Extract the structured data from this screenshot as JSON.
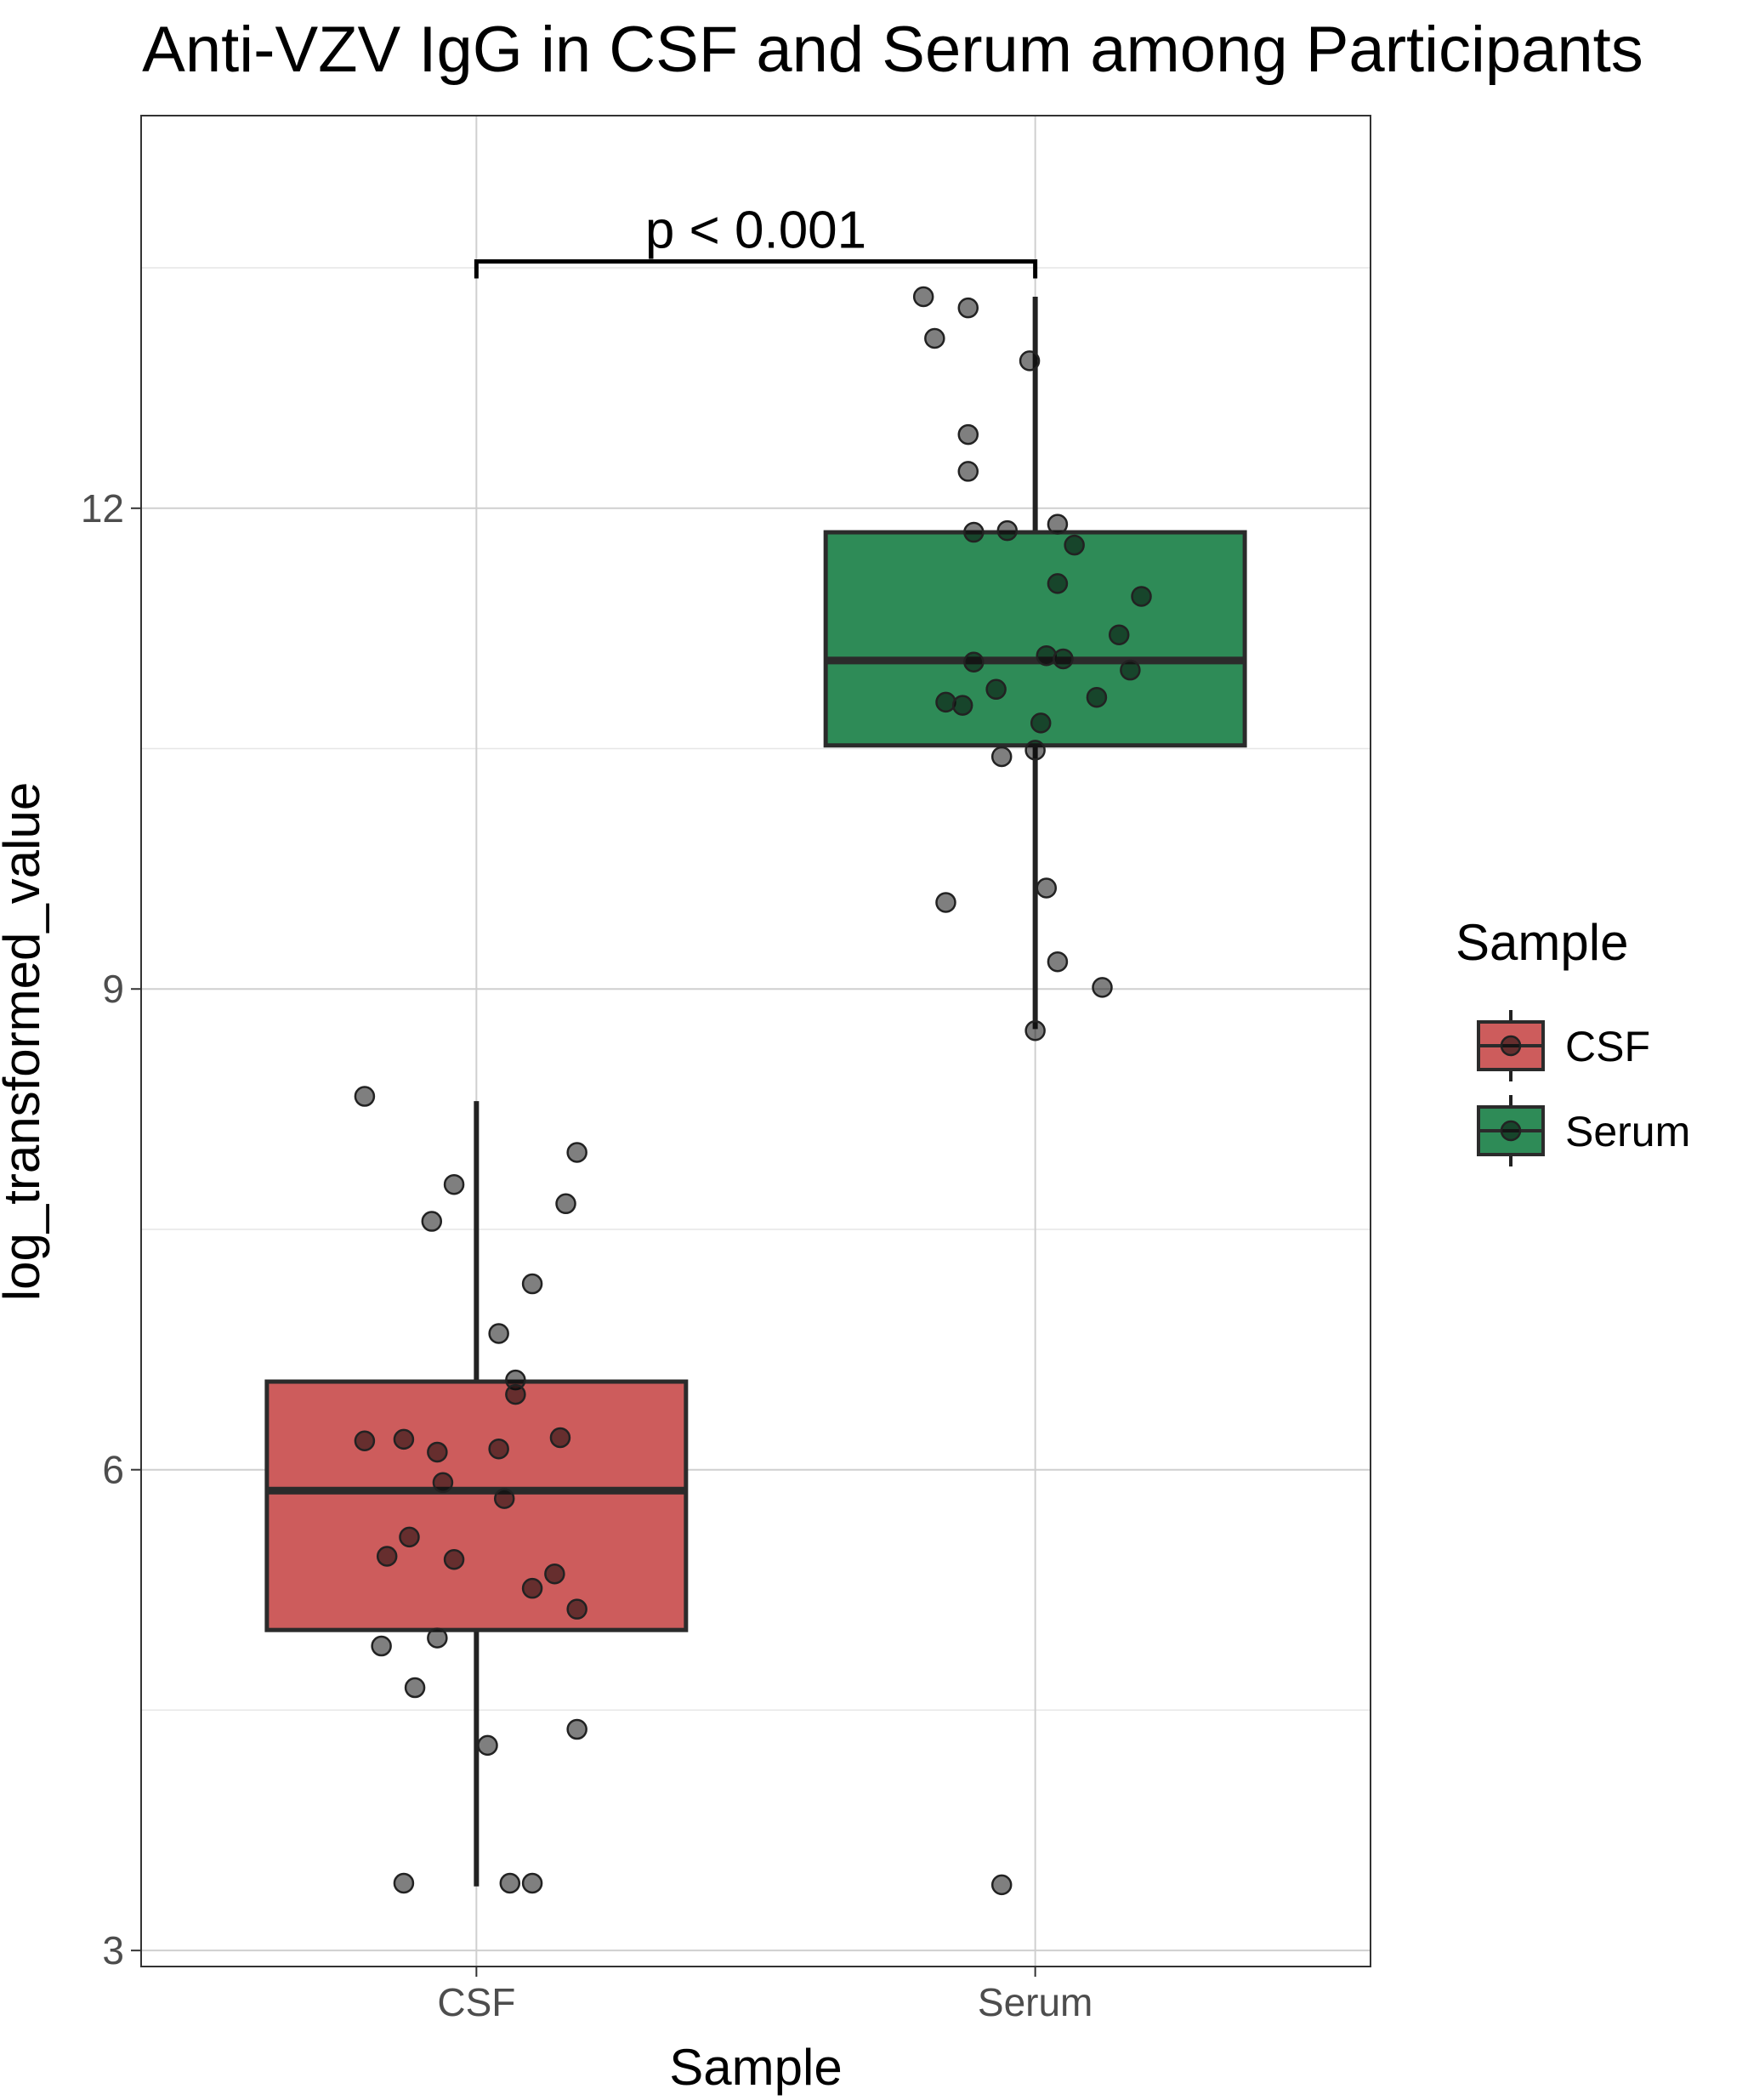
{
  "chart_data": {
    "type": "boxplot",
    "title": "Anti-VZV IgG in CSF and Serum among Participants",
    "xlabel": "Sample",
    "ylabel": "log_transformed_value",
    "ylim": [
      2.9,
      14.45
    ],
    "yticks": [
      3,
      6,
      9,
      12
    ],
    "ytick_labels": [
      "3",
      "6",
      "9",
      "12"
    ],
    "grid": true,
    "legend": {
      "title": "Sample",
      "position": "right",
      "entries": [
        {
          "label": "CSF",
          "color": "#cd5c5c"
        },
        {
          "label": "Serum",
          "color": "#2e8b57"
        }
      ]
    },
    "annotation": {
      "text": "p < 0.001",
      "between": [
        "CSF",
        "Serum"
      ],
      "y": 13.54
    },
    "categories": [
      "CSF",
      "Serum"
    ],
    "groups": [
      {
        "name": "CSF",
        "color": "#cd5c5c",
        "whisker_low": 3.4,
        "q1": 5.0,
        "median": 5.87,
        "q3": 6.55,
        "whisker_high": 8.3,
        "points": [
          {
            "jitter": -0.2,
            "y": 8.33
          },
          {
            "jitter": 0.18,
            "y": 7.98
          },
          {
            "jitter": -0.04,
            "y": 7.78
          },
          {
            "jitter": 0.16,
            "y": 7.66
          },
          {
            "jitter": -0.08,
            "y": 7.55
          },
          {
            "jitter": 0.1,
            "y": 7.16
          },
          {
            "jitter": 0.04,
            "y": 6.85
          },
          {
            "jitter": 0.07,
            "y": 6.56
          },
          {
            "jitter": 0.07,
            "y": 6.47
          },
          {
            "jitter": -0.2,
            "y": 6.18
          },
          {
            "jitter": -0.13,
            "y": 6.19
          },
          {
            "jitter": 0.15,
            "y": 6.2
          },
          {
            "jitter": 0.04,
            "y": 6.13
          },
          {
            "jitter": -0.07,
            "y": 6.11
          },
          {
            "jitter": -0.06,
            "y": 5.92
          },
          {
            "jitter": 0.05,
            "y": 5.82
          },
          {
            "jitter": -0.12,
            "y": 5.58
          },
          {
            "jitter": -0.16,
            "y": 5.46
          },
          {
            "jitter": -0.04,
            "y": 5.44
          },
          {
            "jitter": 0.14,
            "y": 5.35
          },
          {
            "jitter": 0.1,
            "y": 5.26
          },
          {
            "jitter": 0.18,
            "y": 5.13
          },
          {
            "jitter": -0.17,
            "y": 4.9
          },
          {
            "jitter": -0.07,
            "y": 4.95
          },
          {
            "jitter": -0.11,
            "y": 4.64
          },
          {
            "jitter": 0.18,
            "y": 4.38
          },
          {
            "jitter": 0.02,
            "y": 4.28
          },
          {
            "jitter": -0.13,
            "y": 3.42
          },
          {
            "jitter": 0.06,
            "y": 3.42
          },
          {
            "jitter": 0.1,
            "y": 3.42
          }
        ]
      },
      {
        "name": "Serum",
        "color": "#2e8b57",
        "whisker_low": 8.75,
        "q1": 10.52,
        "median": 11.05,
        "q3": 11.85,
        "whisker_high": 13.32,
        "points": [
          {
            "jitter": -0.2,
            "y": 13.32
          },
          {
            "jitter": -0.12,
            "y": 13.25
          },
          {
            "jitter": -0.18,
            "y": 13.06
          },
          {
            "jitter": -0.01,
            "y": 12.92
          },
          {
            "jitter": -0.12,
            "y": 12.46
          },
          {
            "jitter": -0.12,
            "y": 12.23
          },
          {
            "jitter": 0.04,
            "y": 11.9
          },
          {
            "jitter": -0.11,
            "y": 11.85
          },
          {
            "jitter": -0.05,
            "y": 11.86
          },
          {
            "jitter": 0.07,
            "y": 11.77
          },
          {
            "jitter": 0.04,
            "y": 11.53
          },
          {
            "jitter": 0.19,
            "y": 11.45
          },
          {
            "jitter": 0.15,
            "y": 11.21
          },
          {
            "jitter": 0.02,
            "y": 11.08
          },
          {
            "jitter": 0.05,
            "y": 11.06
          },
          {
            "jitter": -0.11,
            "y": 11.04
          },
          {
            "jitter": 0.17,
            "y": 10.99
          },
          {
            "jitter": -0.16,
            "y": 10.79
          },
          {
            "jitter": -0.13,
            "y": 10.77
          },
          {
            "jitter": -0.07,
            "y": 10.87
          },
          {
            "jitter": 0.11,
            "y": 10.82
          },
          {
            "jitter": 0.01,
            "y": 10.66
          },
          {
            "jitter": -0.06,
            "y": 10.45
          },
          {
            "jitter": 0.0,
            "y": 10.49
          },
          {
            "jitter": 0.02,
            "y": 9.63
          },
          {
            "jitter": -0.16,
            "y": 9.54
          },
          {
            "jitter": 0.04,
            "y": 9.17
          },
          {
            "jitter": 0.12,
            "y": 9.01
          },
          {
            "jitter": 0.0,
            "y": 8.74
          },
          {
            "jitter": -0.06,
            "y": 3.41
          }
        ]
      }
    ]
  }
}
